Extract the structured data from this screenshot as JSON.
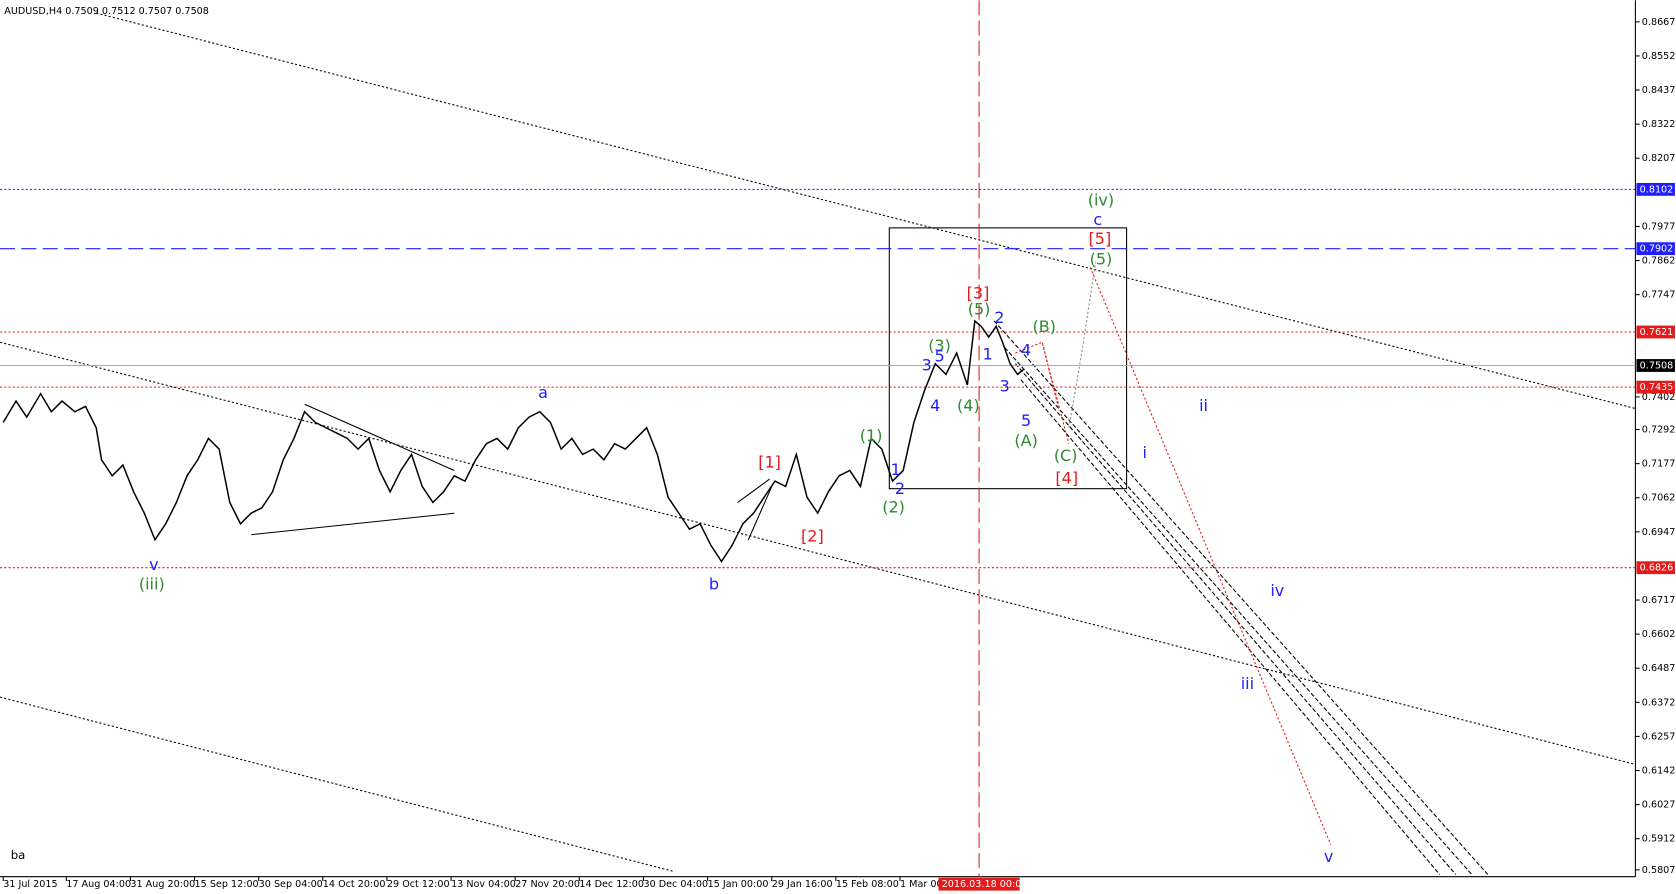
{
  "chart_data": {
    "type": "line",
    "title": "AUDUSD,H4  0.7509 0.7512 0.7507 0.7508",
    "corner_text": "ba",
    "color": "#000000",
    "grid": false,
    "xlim": [
      0,
      1530
    ],
    "ylim": [
      0.5737,
      0.874
    ],
    "xticks": [
      {
        "value": 3,
        "label": "31 Jul 2015"
      },
      {
        "value": 62,
        "label": "17 Aug 04:00"
      },
      {
        "value": 122,
        "label": "31 Aug 20:00"
      },
      {
        "value": 182,
        "label": "15 Sep 12:00"
      },
      {
        "value": 242,
        "label": "30 Sep 04:00"
      },
      {
        "value": 302,
        "label": "14 Oct 20:00"
      },
      {
        "value": 362,
        "label": "29 Oct 12:00"
      },
      {
        "value": 422,
        "label": "13 Nov 04:00"
      },
      {
        "value": 482,
        "label": "27 Nov 20:00"
      },
      {
        "value": 542,
        "label": "14 Dec 12:00"
      },
      {
        "value": 602,
        "label": "30 Dec 04:00"
      },
      {
        "value": 662,
        "label": "15 Jan 00:00"
      },
      {
        "value": 722,
        "label": "29 Jan 16:00"
      },
      {
        "value": 782,
        "label": "15 Feb 08:00"
      },
      {
        "value": 842,
        "label": "1 Mar 00:00"
      }
    ],
    "yticks": [
      0.8667,
      0.8552,
      0.8437,
      0.8322,
      0.8207,
      0.7977,
      0.7862,
      0.7747,
      0.7402,
      0.7292,
      0.7177,
      0.7062,
      0.6947,
      0.6717,
      0.6602,
      0.6487,
      0.6372,
      0.6257,
      0.6142,
      0.6027,
      0.5912,
      0.5807
    ],
    "levels": [
      {
        "value": 0.8102,
        "color": "#1e1eff",
        "style": "dotted"
      },
      {
        "value": 0.7902,
        "color": "#1e1eff",
        "style": "dashed"
      },
      {
        "value": 0.7621,
        "color": "#e31a1a",
        "style": "dotted"
      },
      {
        "value": 0.7508,
        "color": "#000000",
        "style": "solid"
      },
      {
        "value": 0.7435,
        "color": "#e31a1a",
        "style": "dotted"
      },
      {
        "value": 0.6826,
        "color": "#e31a1a",
        "style": "dotted"
      }
    ],
    "vline": {
      "value": 916,
      "label": "2016.03.18 00:00",
      "color": "#e31a1a"
    },
    "x": [
      3,
      15,
      25,
      38,
      48,
      58,
      70,
      80,
      90,
      95,
      105,
      115,
      125,
      135,
      145,
      155,
      165,
      175,
      185,
      195,
      205,
      215,
      225,
      235,
      245,
      255,
      265,
      275,
      285,
      295,
      305,
      315,
      325,
      335,
      345,
      355,
      365,
      375,
      385,
      395,
      405,
      415,
      425,
      435,
      445,
      455,
      465,
      475,
      485,
      495,
      505,
      515,
      525,
      535,
      545,
      555,
      565,
      575,
      585,
      595,
      605,
      615,
      625,
      635,
      645,
      655,
      665,
      675,
      685,
      695,
      705,
      715,
      725,
      735,
      745,
      755,
      765,
      775,
      785,
      795,
      805,
      815,
      825,
      835,
      845,
      855,
      865,
      875,
      885,
      895,
      905,
      912,
      918,
      925,
      932,
      938,
      945,
      952,
      958
    ],
    "values": [
      0.7316,
      0.7388,
      0.7334,
      0.7413,
      0.7352,
      0.7388,
      0.7352,
      0.737,
      0.7298,
      0.719,
      0.7136,
      0.7172,
      0.7082,
      0.701,
      0.692,
      0.6974,
      0.7046,
      0.7136,
      0.719,
      0.7262,
      0.7226,
      0.7046,
      0.6974,
      0.701,
      0.7028,
      0.7082,
      0.719,
      0.7262,
      0.7352,
      0.7316,
      0.7298,
      0.728,
      0.7262,
      0.7226,
      0.7262,
      0.7154,
      0.7082,
      0.7154,
      0.7208,
      0.71,
      0.7046,
      0.7082,
      0.7136,
      0.7118,
      0.719,
      0.7244,
      0.7262,
      0.7226,
      0.7298,
      0.7334,
      0.7352,
      0.7316,
      0.7226,
      0.7262,
      0.7208,
      0.7226,
      0.719,
      0.7244,
      0.7226,
      0.7262,
      0.7298,
      0.7208,
      0.7064,
      0.701,
      0.6956,
      0.6974,
      0.6902,
      0.6847,
      0.6902,
      0.6974,
      0.701,
      0.7064,
      0.7118,
      0.71,
      0.7208,
      0.7064,
      0.701,
      0.7082,
      0.7136,
      0.7154,
      0.71,
      0.7262,
      0.7226,
      0.7118,
      0.7154,
      0.7316,
      0.7424,
      0.7514,
      0.7478,
      0.755,
      0.7442,
      0.7658,
      0.764,
      0.7604,
      0.764,
      0.7586,
      0.7514,
      0.7478,
      0.7496
    ],
    "annotations": [
      {
        "text": "(iv)",
        "color": "#2e8b2e"
      },
      {
        "text": "c",
        "color": "#1e1eff"
      },
      {
        "text": "[5]",
        "color": "#e31a1a"
      },
      {
        "text": "(5)",
        "color": "#2e8b2e"
      },
      {
        "text": "[3]",
        "color": "#e31a1a"
      },
      {
        "text": "(5)",
        "color": "#2e8b2e"
      },
      {
        "text": "2",
        "color": "#1e1eff"
      },
      {
        "text": "(B)",
        "color": "#2e8b2e"
      },
      {
        "text": "4",
        "color": "#1e1eff"
      },
      {
        "text": "(3)",
        "color": "#2e8b2e"
      },
      {
        "text": "3",
        "color": "#1e1eff"
      },
      {
        "text": "5",
        "color": "#1e1eff"
      },
      {
        "text": "1",
        "color": "#1e1eff"
      },
      {
        "text": "3",
        "color": "#1e1eff"
      },
      {
        "text": "4",
        "color": "#1e1eff"
      },
      {
        "text": "(4)",
        "color": "#2e8b2e"
      },
      {
        "text": "5",
        "color": "#1e1eff"
      },
      {
        "text": "(A)",
        "color": "#2e8b2e"
      },
      {
        "text": "(C)",
        "color": "#2e8b2e"
      },
      {
        "text": "[4]",
        "color": "#e31a1a"
      },
      {
        "text": "ii",
        "color": "#1e1eff"
      },
      {
        "text": "i",
        "color": "#1e1eff"
      },
      {
        "text": "[1]",
        "color": "#e31a1a"
      },
      {
        "text": "(1)",
        "color": "#2e8b2e"
      },
      {
        "text": "1",
        "color": "#1e1eff"
      },
      {
        "text": "2",
        "color": "#1e1eff"
      },
      {
        "text": "(2)",
        "color": "#2e8b2e"
      },
      {
        "text": "[2]",
        "color": "#e31a1a"
      },
      {
        "text": "a",
        "color": "#1e1eff"
      },
      {
        "text": "v",
        "color": "#1e1eff"
      },
      {
        "text": "(iii)",
        "color": "#2e8b2e"
      },
      {
        "text": "b",
        "color": "#1e1eff"
      },
      {
        "text": "iv",
        "color": "#1e1eff"
      },
      {
        "text": "iii",
        "color": "#1e1eff"
      },
      {
        "text": "v",
        "color": "#1e1eff"
      }
    ]
  }
}
